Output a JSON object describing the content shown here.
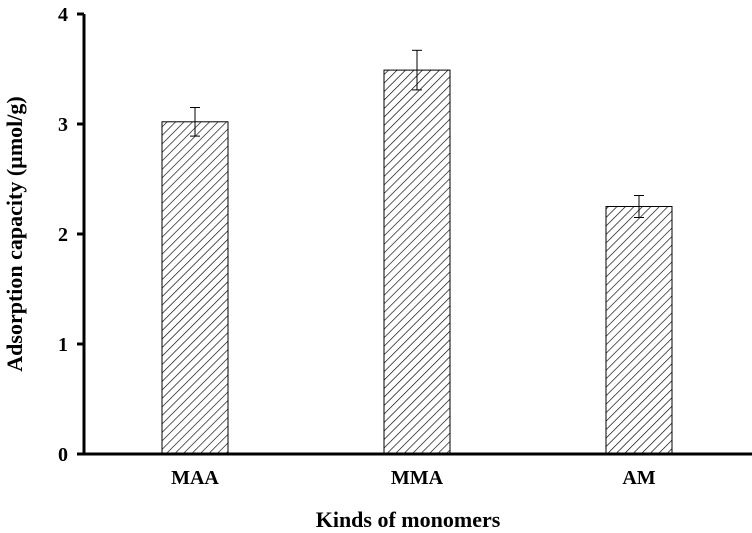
{
  "chart_data": {
    "type": "bar",
    "title": "",
    "xlabel": "Kinds of monomers",
    "ylabel": "Adsorption capacity (µmol/g)",
    "categories": [
      "MAA",
      "MMA",
      "AM"
    ],
    "values": [
      3.02,
      3.49,
      2.25
    ],
    "errors": [
      0.13,
      0.18,
      0.1
    ],
    "ylim": [
      0,
      4
    ],
    "yticks": [
      "0",
      "1",
      "2",
      "3",
      "4"
    ],
    "grid": false,
    "legend": "none",
    "bar_fill": "hatched",
    "colors": {
      "axis": "#000000",
      "bar_edge": "#000000",
      "hatch": "#000000",
      "background": "#ffffff"
    }
  }
}
